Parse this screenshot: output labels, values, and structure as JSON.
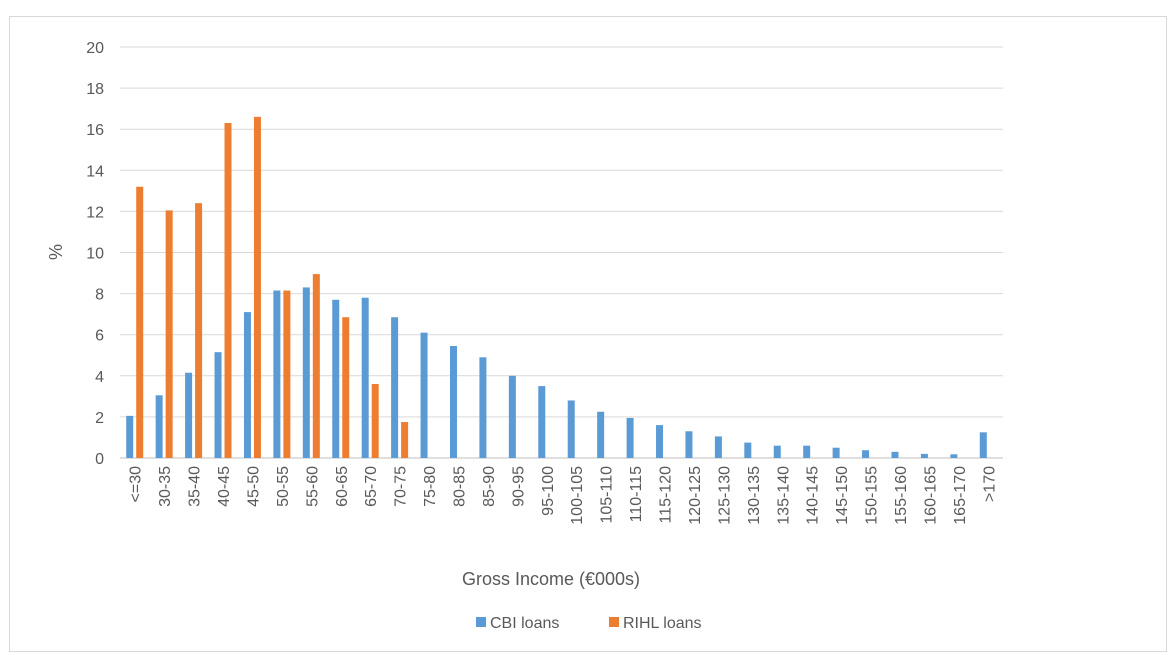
{
  "chart_data": {
    "type": "bar",
    "title": "",
    "xlabel": "Gross Income (€000s)",
    "ylabel": "%",
    "ylim": [
      0,
      20
    ],
    "yticks": [
      0,
      2,
      4,
      6,
      8,
      10,
      12,
      14,
      16,
      18,
      20
    ],
    "grid": true,
    "legend_position": "bottom",
    "categories": [
      "<=30",
      "30-35",
      "35-40",
      "40-45",
      "45-50",
      "50-55",
      "55-60",
      "60-65",
      "65-70",
      "70-75",
      "75-80",
      "80-85",
      "85-90",
      "90-95",
      "95-100",
      "100-105",
      "105-110",
      "110-115",
      "115-120",
      "120-125",
      "125-130",
      "130-135",
      "135-140",
      "140-145",
      "145-150",
      "150-155",
      "155-160",
      "160-165",
      "165-170",
      ">170"
    ],
    "series": [
      {
        "name": "CBI loans",
        "color": "#5b9bd5",
        "values": [
          2.05,
          3.05,
          4.15,
          5.15,
          7.1,
          8.15,
          8.3,
          7.7,
          7.8,
          6.85,
          6.1,
          5.45,
          4.9,
          4.0,
          3.5,
          2.8,
          2.25,
          1.95,
          1.6,
          1.3,
          1.05,
          0.75,
          0.6,
          0.6,
          0.5,
          0.38,
          0.3,
          0.2,
          0.18,
          1.25
        ]
      },
      {
        "name": "RIHL loans",
        "color": "#ed7d31",
        "values": [
          13.2,
          12.05,
          12.4,
          16.3,
          16.6,
          8.15,
          8.95,
          6.85,
          3.6,
          1.75,
          0,
          0,
          0,
          0,
          0,
          0,
          0,
          0,
          0,
          0,
          0,
          0,
          0,
          0,
          0,
          0,
          0,
          0,
          0,
          0
        ]
      }
    ]
  }
}
